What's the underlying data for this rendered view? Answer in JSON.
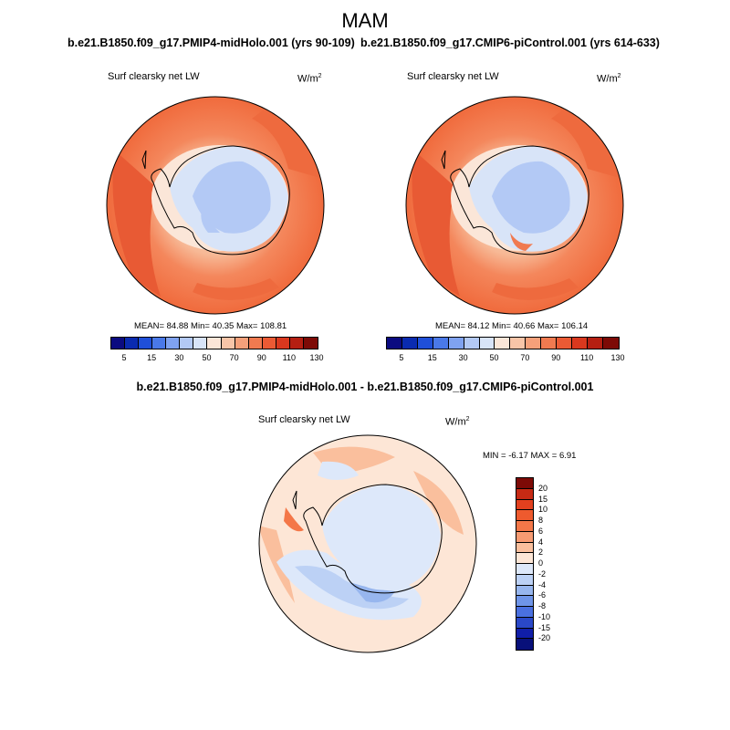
{
  "season": "MAM",
  "panels": [
    {
      "case_title": "b.e21.B1850.f09_g17.PMIP4-midHolo.001 (yrs 90-109)",
      "variable": "Surf clearsky net LW",
      "units": "W/m",
      "units_exp": "2",
      "stats": "MEAN=  84.88  Min=  40.35  Max= 108.81"
    },
    {
      "case_title": "b.e21.B1850.f09_g17.CMIP6-piControl.001 (yrs 614-633)",
      "variable": "Surf clearsky net LW",
      "units": "W/m",
      "units_exp": "2",
      "stats": "MEAN=  84.12  Min=  40.66  Max= 106.14"
    }
  ],
  "difference": {
    "title": "b.e21.B1850.f09_g17.PMIP4-midHolo.001 - b.e21.B1850.f09_g17.CMIP6-piControl.001",
    "variable": "Surf clearsky net LW",
    "units": "W/m",
    "units_exp": "2",
    "stats": "MIN =  -6.17 MAX =   6.91"
  },
  "abs_colorbar": {
    "labels": [
      "5",
      "15",
      "30",
      "50",
      "70",
      "90",
      "110",
      "130"
    ],
    "colors": [
      "#0b0b80",
      "#0a2bb0",
      "#1f4fd8",
      "#4a79e8",
      "#7fa2f0",
      "#b3c9f5",
      "#d8e4f8",
      "#fbe6d8",
      "#f8c5a8",
      "#f5a07a",
      "#f07a50",
      "#eb5a34",
      "#d9381e",
      "#b51f12",
      "#7d0a06"
    ]
  },
  "diff_colorbar": {
    "labels": [
      "20",
      "15",
      "10",
      "8",
      "6",
      "4",
      "2",
      "0",
      "-2",
      "-4",
      "-6",
      "-8",
      "-10",
      "-15",
      "-20"
    ],
    "colors": [
      "#7d0a06",
      "#c62a14",
      "#e2401e",
      "#ee5a2e",
      "#f47748",
      "#f79b72",
      "#fabf9d",
      "#fde6d6",
      "#dde8fa",
      "#bcd1f5",
      "#97b6ee",
      "#6f95e8",
      "#4a70e0",
      "#2a48c8",
      "#101ea8",
      "#08107a"
    ]
  }
}
